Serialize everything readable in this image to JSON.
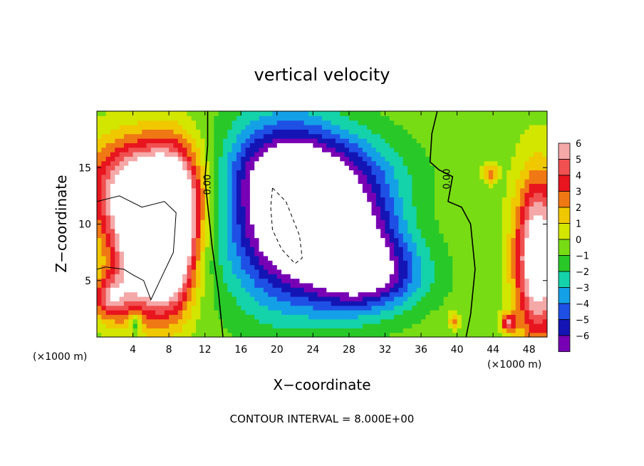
{
  "chart_data": {
    "type": "heatmap",
    "title": "vertical velocity",
    "xlabel": "X−coordinate",
    "ylabel": "Z−coordinate",
    "x_unit_left": "(×1000 m)",
    "x_unit_right": "(×1000 m)",
    "xlim": [
      0,
      50
    ],
    "ylim": [
      0,
      20
    ],
    "x_ticks": [
      4,
      8,
      12,
      16,
      20,
      24,
      28,
      32,
      36,
      40,
      44,
      48
    ],
    "x_tick_labels": [
      "4",
      "8",
      "12",
      "16",
      "20",
      "24",
      "28",
      "32",
      "36",
      "40",
      "44",
      "48"
    ],
    "y_ticks": [
      5,
      10,
      15
    ],
    "y_tick_labels": [
      "5",
      "10",
      "15"
    ],
    "contour_interval_text": "CONTOUR INTERVAL = 8.000E+00",
    "contour_labels": [
      {
        "text": "0.00",
        "x": 12.6,
        "y": 13.5
      },
      {
        "text": "0.00",
        "x": 39.2,
        "y": 14.0
      }
    ],
    "colorbar": {
      "levels": [
        6,
        5,
        4,
        3,
        2,
        1,
        0,
        -1,
        -2,
        -3,
        -4,
        -5,
        -6
      ],
      "labels": [
        "6",
        "5",
        "4",
        "3",
        "2",
        "1",
        "0",
        "−1",
        "−2",
        "−3",
        "−4",
        "−5",
        "−6"
      ],
      "colors": [
        "#f5a8a8",
        "#f05050",
        "#e8141e",
        "#f07814",
        "#f0c800",
        "#d2e600",
        "#78dc14",
        "#28c828",
        "#14d2aa",
        "#14a0e6",
        "#1e50e6",
        "#1414b4",
        "#7800b4"
      ]
    },
    "features": [
      {
        "kind": "updraft",
        "x": 5.5,
        "y": 13.0,
        "rx": 6.0,
        "ry": 4.5,
        "peak": 9
      },
      {
        "kind": "updraft",
        "x": 5.5,
        "y": 7.0,
        "rx": 3.5,
        "ry": 5.0,
        "peak": 9
      },
      {
        "kind": "updraft",
        "x": 8.5,
        "y": 9.0,
        "rx": 2.5,
        "ry": 6.0,
        "peak": 8
      },
      {
        "kind": "downdraft",
        "x": 21.0,
        "y": 11.0,
        "rx": 6.5,
        "ry": 7.5,
        "peak": -9
      },
      {
        "kind": "downdraft",
        "x": 28.5,
        "y": 9.0,
        "rx": 5.5,
        "ry": 5.5,
        "peak": -6.5
      },
      {
        "kind": "downdraft",
        "x": 30.5,
        "y": 5.5,
        "rx": 6.0,
        "ry": 3.0,
        "peak": -4.5
      },
      {
        "kind": "downdraft",
        "x": 24.0,
        "y": 15.0,
        "rx": 9.0,
        "ry": 3.5,
        "peak": -3
      },
      {
        "kind": "updraft",
        "x": 49.0,
        "y": 7.0,
        "rx": 2.5,
        "ry": 7.0,
        "peak": 9
      },
      {
        "kind": "updraft",
        "x": 43.7,
        "y": 14.5,
        "rx": 0.8,
        "ry": 0.8,
        "peak": 3.5
      },
      {
        "kind": "updraft",
        "x": 45.7,
        "y": 1.3,
        "rx": 0.8,
        "ry": 0.8,
        "peak": 5
      },
      {
        "kind": "updraft",
        "x": 39.7,
        "y": 1.5,
        "rx": 0.6,
        "ry": 0.8,
        "peak": 3
      },
      {
        "kind": "updraft",
        "x": 1.5,
        "y": 3.5,
        "rx": 2.0,
        "ry": 2.0,
        "peak": 5
      },
      {
        "kind": "downdraft",
        "x": 4.3,
        "y": 1.2,
        "rx": 0.6,
        "ry": 1.0,
        "peak": -3
      }
    ],
    "grid": false,
    "legend": "colorbar-right"
  }
}
